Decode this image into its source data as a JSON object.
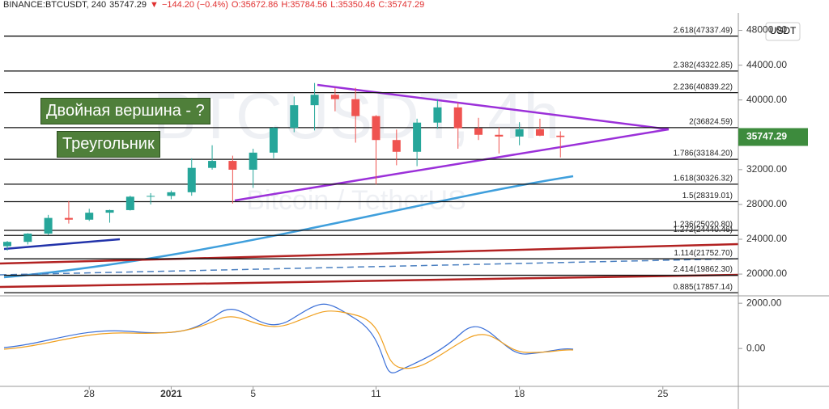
{
  "header": {
    "symbol": "BINANCE:BTCUSDT, 240",
    "last": "35747.29",
    "arrow": "▼",
    "change": "−144.20 (−0.4%)",
    "open": "O:35672.86",
    "high": "H:35784.56",
    "low": "L:35350.46",
    "close": "C:35747.29"
  },
  "watermark": {
    "ticker": "BTCUSDT, 4h",
    "name": "Bitcoin / TetherUS"
  },
  "annotations": [
    "Двойная вершина - ?",
    "Треугольник"
  ],
  "currency": "USDT",
  "chart_data": {
    "type": "candlestick",
    "x": [
      "2020-12-24",
      "2020-12-25",
      "2020-12-26",
      "2020-12-27",
      "2020-12-28",
      "2020-12-29",
      "2020-12-30",
      "2020-12-31",
      "2021-01-01",
      "2021-01-02",
      "2021-01-03",
      "2021-01-04",
      "2021-01-05",
      "2021-01-06",
      "2021-01-07",
      "2021-01-08",
      "2021-01-09",
      "2021-01-10",
      "2021-01-11",
      "2021-01-12",
      "2021-01-13",
      "2021-01-14",
      "2021-01-15",
      "2021-01-16",
      "2021-01-17",
      "2021-01-18",
      "2021-01-19",
      "2021-01-20"
    ],
    "open": [
      23200,
      23700,
      24650,
      26450,
      26250,
      27050,
      27350,
      28890,
      28980,
      29400,
      32200,
      33000,
      31990,
      33950,
      36800,
      39400,
      40600,
      40100,
      38150,
      35400,
      34050,
      37400,
      39150,
      36750,
      36000,
      35800,
      36650,
      35900
    ],
    "high": [
      23800,
      24700,
      26800,
      28400,
      27500,
      27400,
      28999,
      29300,
      29600,
      33300,
      34800,
      33600,
      34400,
      36900,
      40400,
      41950,
      41400,
      41400,
      38250,
      36600,
      37850,
      40100,
      39700,
      37950,
      36850,
      37450,
      37850,
      36400
    ],
    "low": [
      22700,
      23400,
      24500,
      25800,
      26100,
      25900,
      27300,
      28000,
      28600,
      29000,
      32000,
      28100,
      29900,
      33300,
      36300,
      36500,
      38700,
      35100,
      30300,
      32500,
      32400,
      36700,
      34400,
      35400,
      33850,
      34800,
      35850,
      33400
    ],
    "close": [
      23700,
      24650,
      26450,
      26250,
      27050,
      27350,
      28890,
      28980,
      29400,
      32200,
      33000,
      31990,
      33950,
      36800,
      39400,
      40600,
      40100,
      38150,
      35400,
      34050,
      37400,
      39150,
      36750,
      36000,
      35800,
      36650,
      35900,
      35747.29
    ],
    "up_color": "#26a69a",
    "down_color": "#ef5350",
    "xlim": [
      "2020-12-24",
      "2021-01-29"
    ],
    "xticks": [
      {
        "value": "2020-12-28",
        "label": "28"
      },
      {
        "value": "2021-01-01",
        "label": "2021"
      },
      {
        "value": "2021-01-05",
        "label": "5"
      },
      {
        "value": "2021-01-11",
        "label": "11"
      },
      {
        "value": "2021-01-18",
        "label": "18"
      },
      {
        "value": "2021-01-25",
        "label": "25"
      }
    ],
    "ylim": [
      17500,
      50000
    ],
    "yticks": [
      {
        "value": 48000,
        "label": "48000.00"
      },
      {
        "value": 44000,
        "label": "44000.00"
      },
      {
        "value": 40000,
        "label": "40000.00"
      },
      {
        "value": 32000,
        "label": "32000.00"
      },
      {
        "value": 28000,
        "label": "28000.00"
      },
      {
        "value": 24000,
        "label": "24000.00"
      },
      {
        "value": 20000,
        "label": "20000.00"
      }
    ],
    "price_tag": {
      "value": 35747.29,
      "label": "35747.29",
      "color": "#3d8b3d"
    },
    "fib_levels": [
      {
        "value": 47337.49,
        "label": "2.618(47337.49)"
      },
      {
        "value": 43322.85,
        "label": "2.382(43322.85)"
      },
      {
        "value": 40839.22,
        "label": "2.236(40839.22)"
      },
      {
        "value": 36824.59,
        "label": "2(36824.59)"
      },
      {
        "value": 33184.2,
        "label": "1.786(33184.20)"
      },
      {
        "value": 30326.32,
        "label": "1.618(30326.32)"
      },
      {
        "value": 28319.01,
        "label": "1.5(28319.01)"
      },
      {
        "value": 25020.8,
        "label": "1.236(25020.80)"
      },
      {
        "value": 24440.46,
        "label": "1.272(24440.46)"
      },
      {
        "value": 21752.7,
        "label": "1.114(21752.70)"
      },
      {
        "value": 19862.3,
        "label": "2.414(19862.30)"
      },
      {
        "value": 17857.14,
        "label": "0.885(17857.14)"
      }
    ],
    "macd_ylim": [
      -1673,
      2327
    ],
    "macd_yticks": [
      {
        "value": 2000,
        "label": "2000.00"
      },
      {
        "value": 0,
        "label": "0.00"
      }
    ]
  }
}
